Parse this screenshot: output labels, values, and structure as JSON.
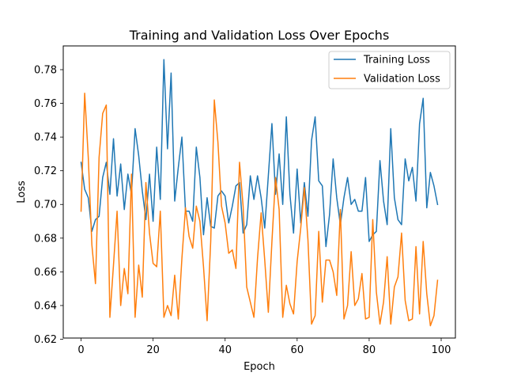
{
  "chart_data": {
    "type": "line",
    "title": "Training and Validation Loss Over Epochs",
    "xlabel": "Epoch",
    "ylabel": "Loss",
    "xlim": [
      -4.95,
      103.95
    ],
    "ylim": [
      0.6207,
      0.7941
    ],
    "xticks": [
      0,
      20,
      40,
      60,
      80,
      100
    ],
    "yticks": [
      0.62,
      0.64,
      0.66,
      0.68,
      0.7,
      0.72,
      0.74,
      0.76,
      0.78
    ],
    "ytick_labels": [
      "0.62",
      "0.64",
      "0.66",
      "0.68",
      "0.70",
      "0.72",
      "0.74",
      "0.76",
      "0.78"
    ],
    "grid": false,
    "legend": {
      "placement": "top-right"
    },
    "series": [
      {
        "name": "Training Loss",
        "color": "#1f77b4",
        "values": [
          0.725,
          0.709,
          0.704,
          0.684,
          0.691,
          0.693,
          0.716,
          0.725,
          0.706,
          0.739,
          0.705,
          0.724,
          0.697,
          0.718,
          0.706,
          0.745,
          0.729,
          0.708,
          0.691,
          0.718,
          0.69,
          0.734,
          0.703,
          0.786,
          0.733,
          0.778,
          0.702,
          0.722,
          0.74,
          0.696,
          0.696,
          0.69,
          0.734,
          0.716,
          0.682,
          0.704,
          0.687,
          0.686,
          0.705,
          0.708,
          0.705,
          0.689,
          0.699,
          0.711,
          0.713,
          0.683,
          0.688,
          0.717,
          0.703,
          0.717,
          0.704,
          0.686,
          0.717,
          0.748,
          0.706,
          0.73,
          0.7,
          0.752,
          0.706,
          0.683,
          0.721,
          0.689,
          0.713,
          0.693,
          0.738,
          0.752,
          0.714,
          0.711,
          0.675,
          0.694,
          0.727,
          0.704,
          0.688,
          0.704,
          0.716,
          0.7,
          0.703,
          0.696,
          0.696,
          0.716,
          0.678,
          0.682,
          0.684,
          0.726,
          0.702,
          0.688,
          0.745,
          0.704,
          0.691,
          0.688,
          0.727,
          0.714,
          0.722,
          0.702,
          0.748,
          0.763,
          0.698,
          0.719,
          0.711,
          0.7
        ]
      },
      {
        "name": "Validation Loss",
        "color": "#ff7f0e",
        "values": [
          0.696,
          0.766,
          0.728,
          0.676,
          0.653,
          0.728,
          0.754,
          0.759,
          0.633,
          0.664,
          0.696,
          0.64,
          0.662,
          0.647,
          0.718,
          0.633,
          0.664,
          0.645,
          0.713,
          0.683,
          0.665,
          0.663,
          0.696,
          0.633,
          0.64,
          0.634,
          0.658,
          0.632,
          0.668,
          0.698,
          0.681,
          0.674,
          0.699,
          0.69,
          0.663,
          0.631,
          0.678,
          0.762,
          0.737,
          0.699,
          0.689,
          0.671,
          0.673,
          0.662,
          0.725,
          0.699,
          0.651,
          0.642,
          0.633,
          0.668,
          0.695,
          0.667,
          0.636,
          0.678,
          0.716,
          0.697,
          0.633,
          0.652,
          0.641,
          0.635,
          0.666,
          0.686,
          0.71,
          0.679,
          0.629,
          0.634,
          0.684,
          0.642,
          0.667,
          0.667,
          0.66,
          0.646,
          0.697,
          0.632,
          0.64,
          0.672,
          0.64,
          0.644,
          0.659,
          0.632,
          0.633,
          0.691,
          0.648,
          0.629,
          0.642,
          0.669,
          0.629,
          0.651,
          0.657,
          0.683,
          0.643,
          0.631,
          0.632,
          0.675,
          0.635,
          0.678,
          0.647,
          0.628,
          0.634,
          0.655
        ]
      }
    ]
  }
}
